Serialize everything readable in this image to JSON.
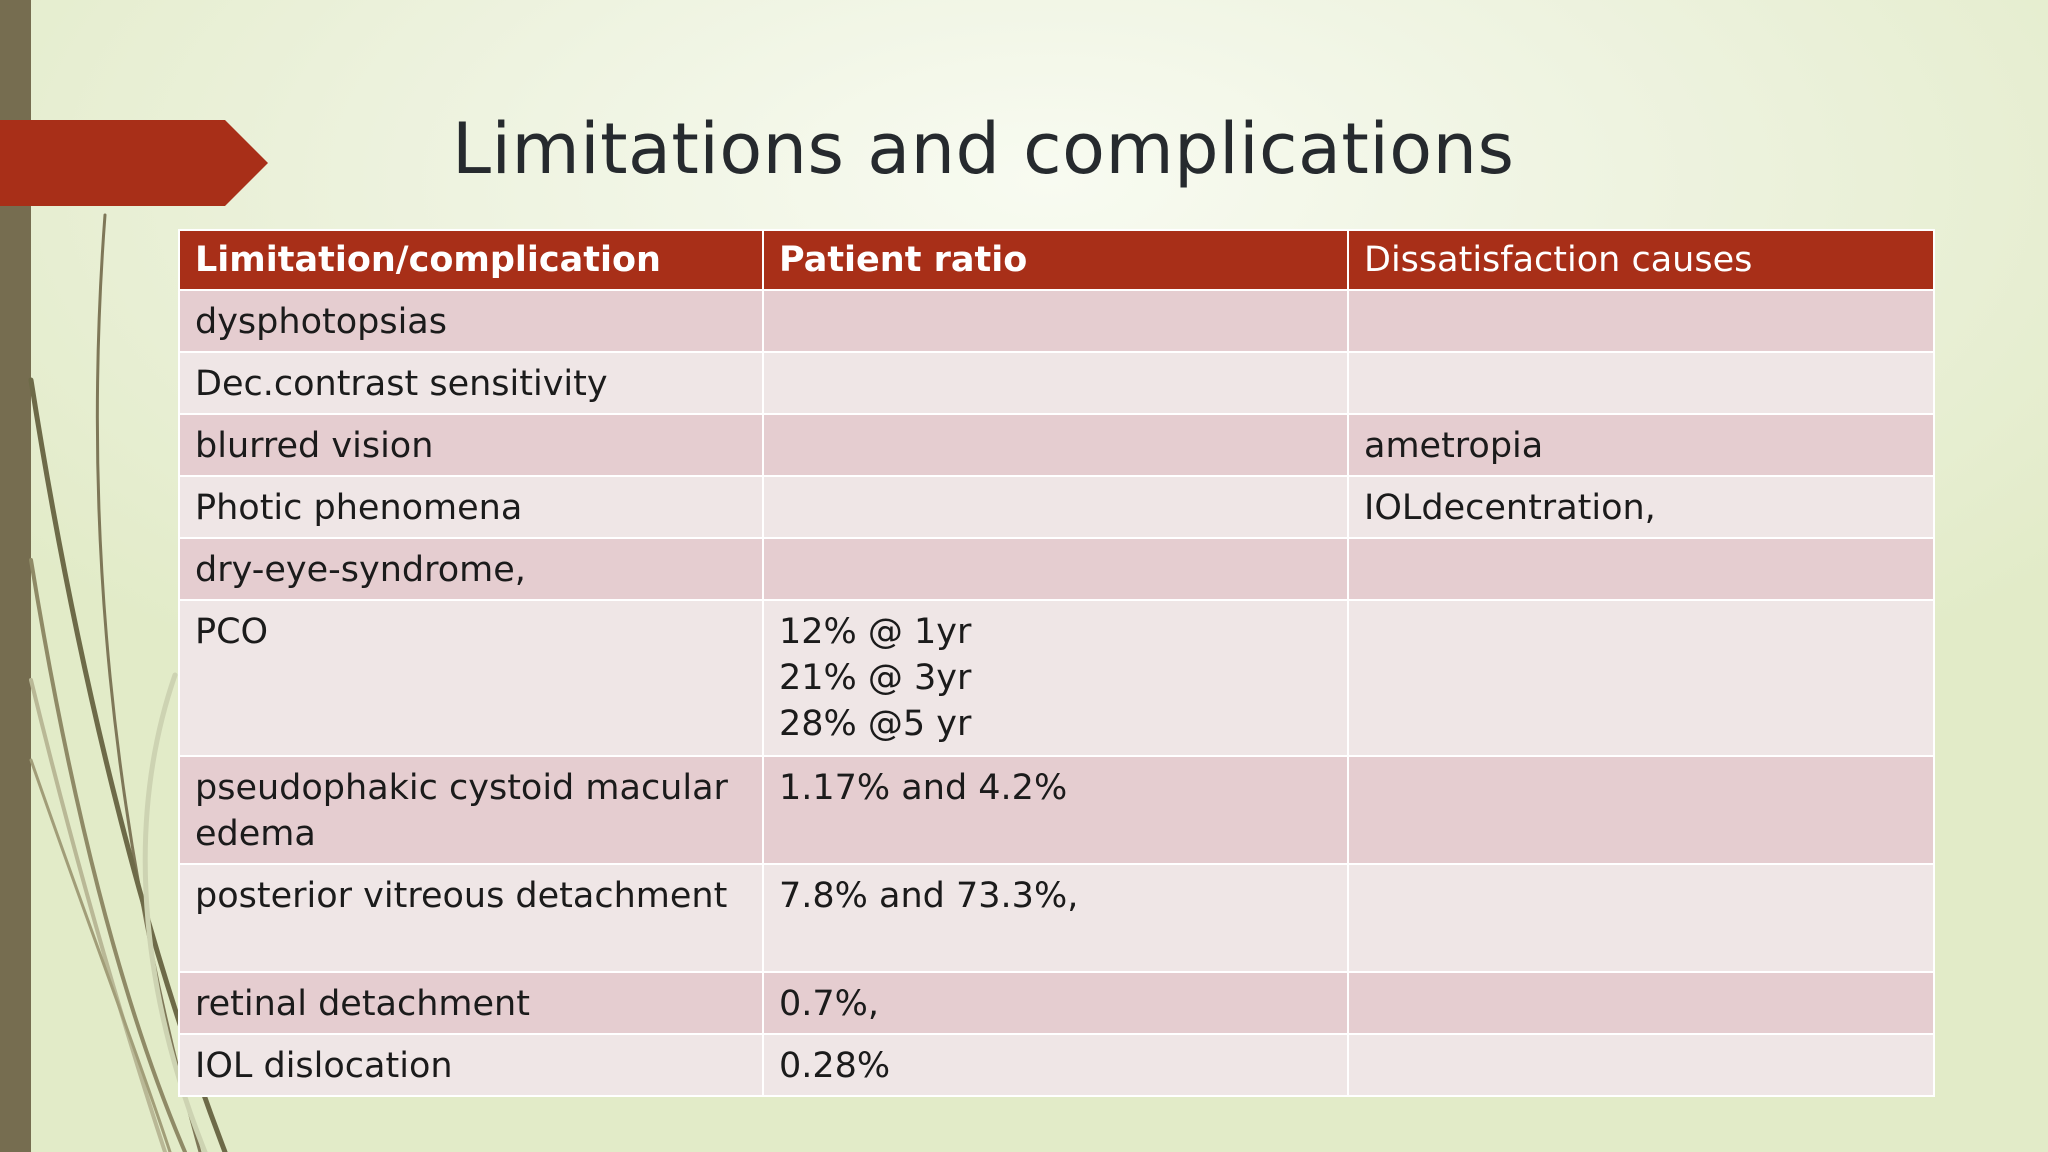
{
  "slide": {
    "title": "Limitations and complications"
  },
  "table": {
    "headers": [
      "Limitation/complication",
      "Patient ratio",
      "Dissatisfaction causes"
    ],
    "rows": [
      {
        "col1": "dysphotopsias",
        "col2": "",
        "col3": ""
      },
      {
        "col1": "Dec.contrast sensitivity",
        "col2": "",
        "col3": ""
      },
      {
        "col1": "blurred vision",
        "col2": "",
        "col3": " ametropia"
      },
      {
        "col1": "Photic phenomena",
        "col2": "",
        "col3": "IOLdecentration,"
      },
      {
        "col1": " dry-eye-syndrome,",
        "col2": "",
        "col3": ""
      },
      {
        "col1": " PCO",
        "col2_lines": [
          "12% @ 1yr",
          "21% @ 3yr",
          "28% @5 yr"
        ],
        "col3": ""
      },
      {
        "col1": "pseudophakic cystoid macular edema",
        "col2": "1.17% and 4.2%",
        "col3": ""
      },
      {
        "col1": " posterior vitreous detachment",
        "col2": "7.8% and 73.3%,",
        "col3": ""
      },
      {
        "col1": " retinal detachment",
        "col2": "0.7%,",
        "col3": ""
      },
      {
        "col1": "IOL dislocation",
        "col2": " 0.28%",
        "col3": ""
      }
    ]
  },
  "colors": {
    "header_fill": "#a82f18",
    "arrow_fill": "#a82f18",
    "row_odd": "#e5cdd0",
    "row_even": "#efe6e6",
    "left_bar": "#766d50"
  }
}
